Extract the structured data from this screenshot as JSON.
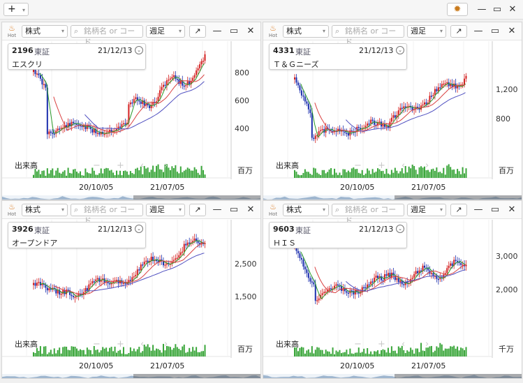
{
  "topbar": {
    "add_label": "+",
    "gear_icon": "gear-icon"
  },
  "toolbar": {
    "hot_label": "Hot",
    "market_label": "株式",
    "search_placeholder": "銘柄名 or コード",
    "period_label": "週足"
  },
  "chart_common": {
    "volume_label": "出来高",
    "x_ticks": [
      "20/10/05",
      "21/07/05"
    ]
  },
  "colors": {
    "up": "#d42020",
    "down": "#1c2fae",
    "ma_short": "#2a9a2a",
    "ma_mid": "#d94040",
    "ma_long": "#5050c0",
    "volume": "#3aa63a"
  },
  "panels": [
    {
      "code": "2196",
      "exchange": "東証",
      "date": "21/12/13",
      "name": "エスクリ",
      "y_ticks": [
        "800",
        "600",
        "400"
      ],
      "volume_unit": "百万"
    },
    {
      "code": "4331",
      "exchange": "東証",
      "date": "21/12/13",
      "name": "Ｔ＆Ｇニーズ",
      "y_ticks": [
        "1,200",
        "800"
      ],
      "volume_unit": "百万"
    },
    {
      "code": "3926",
      "exchange": "東証",
      "date": "21/12/13",
      "name": "オープンドア",
      "y_ticks": [
        "2,500",
        "1,500"
      ],
      "volume_unit": "百万"
    },
    {
      "code": "9603",
      "exchange": "東証",
      "date": "21/12/13",
      "name": "ＨＩＳ",
      "y_ticks": [
        "3,000",
        "2,000"
      ],
      "volume_unit": "千万"
    }
  ]
}
